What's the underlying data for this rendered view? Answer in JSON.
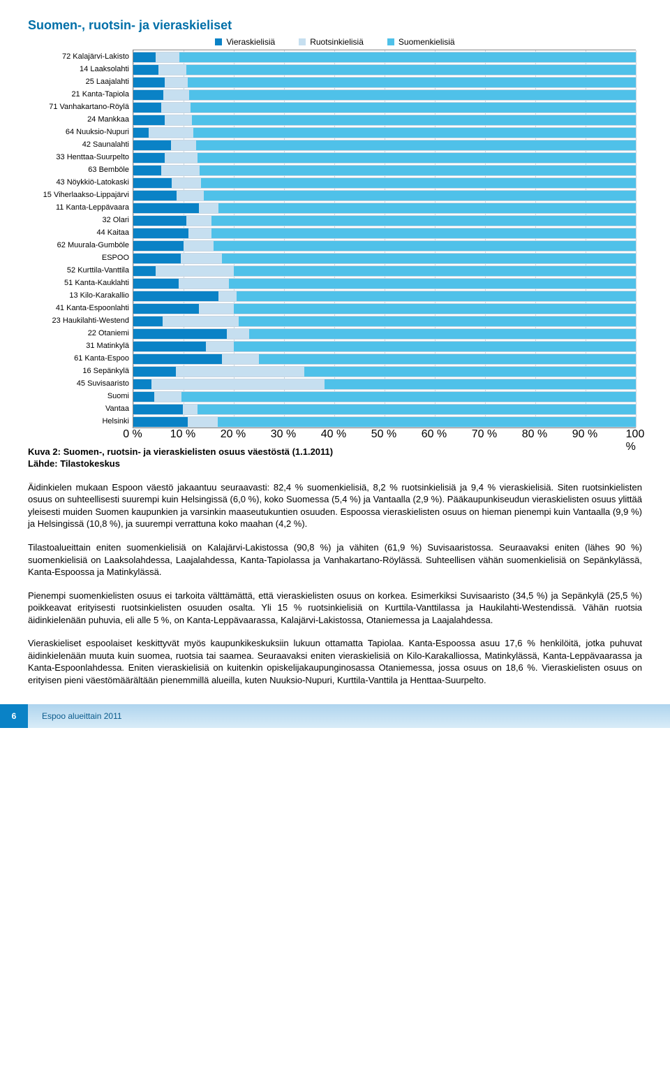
{
  "title": "Suomen-, ruotsin- ja vieraskieliset",
  "legend": [
    {
      "label": "Vieraskielisiä",
      "color": "#0a82c6"
    },
    {
      "label": "Ruotsinkielisiä",
      "color": "#c6dff0"
    },
    {
      "label": "Suomenkielisiä",
      "color": "#4fc1e9"
    }
  ],
  "chart": {
    "xticks": [
      "0 %",
      "10 %",
      "20 %",
      "30 %",
      "40 %",
      "50 %",
      "60 %",
      "70 %",
      "80 %",
      "90 %",
      "100 %"
    ],
    "rows": [
      {
        "label": "72 Kalajärvi-Lakisto",
        "v": 4.5,
        "r": 4.7,
        "s": 90.8
      },
      {
        "label": "14 Laaksolahti",
        "v": 5.0,
        "r": 5.5,
        "s": 89.5
      },
      {
        "label": "25 Laajalahti",
        "v": 6.3,
        "r": 4.5,
        "s": 89.2
      },
      {
        "label": "21 Kanta-Tapiola",
        "v": 6.0,
        "r": 5.1,
        "s": 88.9
      },
      {
        "label": "71 Vanhakartano-Röylä",
        "v": 5.6,
        "r": 5.8,
        "s": 88.6
      },
      {
        "label": "24 Mankkaa",
        "v": 6.2,
        "r": 5.5,
        "s": 88.3
      },
      {
        "label": "64 Nuuksio-Nupuri",
        "v": 3.0,
        "r": 9.0,
        "s": 88.0
      },
      {
        "label": "42 Saunalahti",
        "v": 7.5,
        "r": 5.0,
        "s": 87.5
      },
      {
        "label": "33 Henttaa-Suurpelto",
        "v": 6.2,
        "r": 6.6,
        "s": 87.2
      },
      {
        "label": "63 Bemböle",
        "v": 5.6,
        "r": 7.6,
        "s": 86.8
      },
      {
        "label": "43 Nöykkiö-Latokaski",
        "v": 7.7,
        "r": 5.8,
        "s": 86.5
      },
      {
        "label": "15 Viherlaakso-Lippajärvi",
        "v": 8.6,
        "r": 5.4,
        "s": 86.0
      },
      {
        "label": "11 Kanta-Leppävaara",
        "v": 13.0,
        "r": 4.0,
        "s": 83.0
      },
      {
        "label": "32 Olari",
        "v": 10.5,
        "r": 5.0,
        "s": 84.5
      },
      {
        "label": "44 Kaitaa",
        "v": 11.0,
        "r": 4.5,
        "s": 84.5
      },
      {
        "label": "62 Muurala-Gumböle",
        "v": 10.0,
        "r": 6.0,
        "s": 84.0
      },
      {
        "label": "ESPOO",
        "v": 9.4,
        "r": 8.2,
        "s": 82.4
      },
      {
        "label": "52 Kurttila-Vanttila",
        "v": 4.5,
        "r": 15.5,
        "s": 80.0
      },
      {
        "label": "51 Kanta-Kauklahti",
        "v": 9.0,
        "r": 10.0,
        "s": 81.0
      },
      {
        "label": "13 Kilo-Karakallio",
        "v": 17.0,
        "r": 3.5,
        "s": 79.5
      },
      {
        "label": "41 Kanta-Espoonlahti",
        "v": 13.0,
        "r": 7.0,
        "s": 80.0
      },
      {
        "label": "23 Haukilahti-Westend",
        "v": 5.8,
        "r": 15.2,
        "s": 79.0
      },
      {
        "label": "22 Otaniemi",
        "v": 18.6,
        "r": 4.4,
        "s": 77.0
      },
      {
        "label": "31 Matinkylä",
        "v": 14.5,
        "r": 5.5,
        "s": 80.0
      },
      {
        "label": "61 Kanta-Espoo",
        "v": 17.6,
        "r": 7.4,
        "s": 75.0
      },
      {
        "label": "16 Sepänkylä",
        "v": 8.5,
        "r": 25.5,
        "s": 66.0
      },
      {
        "label": "45 Suvisaaristo",
        "v": 3.6,
        "r": 34.5,
        "s": 61.9
      },
      {
        "label": "Suomi",
        "v": 4.2,
        "r": 5.4,
        "s": 90.4
      },
      {
        "label": "Vantaa",
        "v": 9.9,
        "r": 2.9,
        "s": 87.2
      },
      {
        "label": "Helsinki",
        "v": 10.8,
        "r": 6.0,
        "s": 83.2
      }
    ]
  },
  "caption": {
    "line1": "Kuva 2: Suomen-, ruotsin- ja vieraskielisten osuus väestöstä (1.1.2011)",
    "line2": "Lähde: Tilastokeskus"
  },
  "paragraphs": {
    "p1": "Äidinkielen mukaan Espoon väestö jakaantuu seuraavasti: 82,4 % suomenkielisiä, 8,2 % ruotsinkielisiä ja 9,4 % vieraskielisiä. Siten ruotsinkielisten osuus on suhteellisesti suurempi kuin Helsingissä (6,0 %), koko Suomessa (5,4 %) ja Vantaalla (2,9 %). Pääkaupunkiseudun vieraskielisten osuus ylittää yleisesti muiden Suomen kaupunkien ja varsinkin maaseutukuntien osuuden. Espoossa vieraskielisten osuus on hieman pienempi kuin Vantaalla (9,9 %) ja Helsingissä (10,8 %), ja suurempi verrattuna koko maahan (4,2 %).",
    "p2": "Tilastoalueittain eniten suomenkielisiä on Kalajärvi-Lakistossa (90,8 %) ja vähiten (61,9 %) Suvisaaristossa. Seuraavaksi eniten (lähes 90 %) suomenkielisiä on Laaksolahdessa, Laajalahdessa, Kanta-Tapiolassa ja Vanhakartano-Röylässä. Suhteellisen vähän suomenkielisiä on Sepänkylässä, Kanta-Espoossa ja Matinkylässä.",
    "p3": "Pienempi suomenkielisten osuus ei tarkoita välttämättä, että vieraskielisten osuus on korkea. Esimerkiksi Suvisaaristo (34,5 %) ja Sepänkylä (25,5 %) poikkeavat erityisesti ruotsinkielisten osuuden osalta. Yli 15 % ruotsinkielisiä on Kurttila-Vanttilassa ja Haukilahti-Westendissä. Vähän ruotsia äidinkielenään puhuvia, eli alle 5 %, on Kanta-Leppävaarassa, Kalajärvi-Lakistossa, Otaniemessa ja Laajalahdessa.",
    "p4": "Vieraskieliset espoolaiset keskittyvät myös kaupunkikeskuksiin lukuun ottamatta Tapiolaa. Kanta-Espoossa asuu 17,6 % henkilöitä, jotka puhuvat äidinkielenään muuta kuin suomea, ruotsia tai saamea. Seuraavaksi eniten vieraskielisiä on Kilo-Karakalliossa, Matinkylässä, Kanta-Leppävaarassa ja Kanta-Espoonlahdessa. Eniten vieraskielisiä on kuitenkin opiskelijakaupunginosassa Otaniemessa, jossa osuus on 18,6 %. Vieraskielisten osuus on erityisen pieni väestömäärältään pienemmillä alueilla, kuten Nuuksio-Nupuri, Kurttila-Vanttila ja Henttaa-Suurpelto."
  },
  "footer": {
    "page": "6",
    "title": "Espoo alueittain 2011"
  }
}
